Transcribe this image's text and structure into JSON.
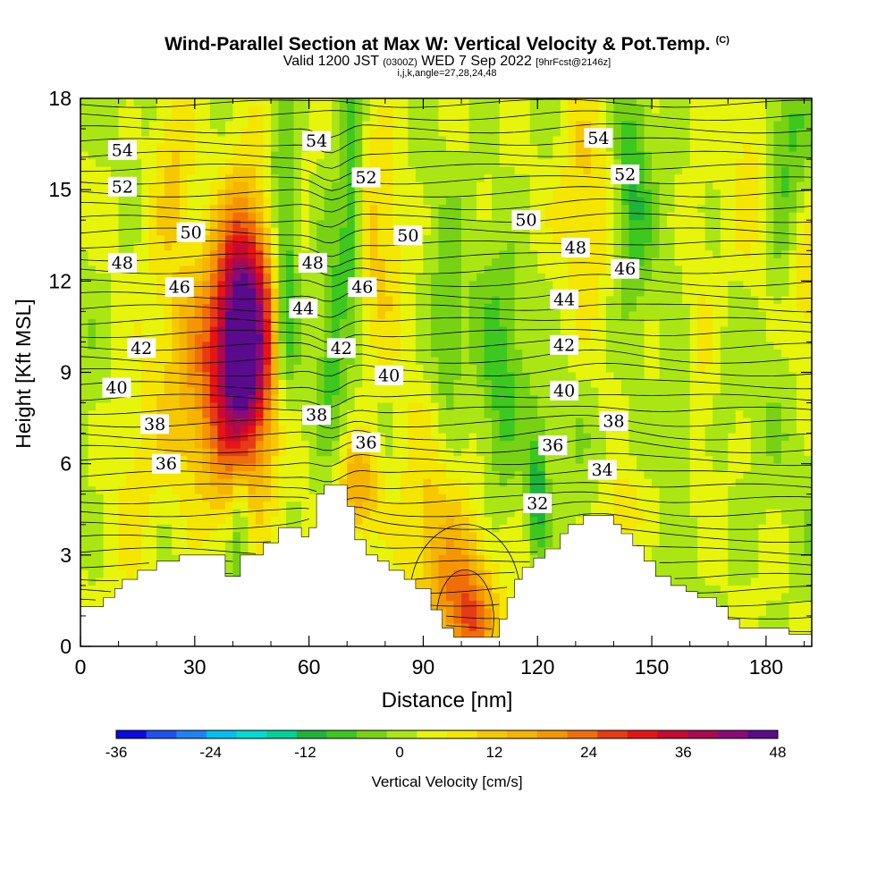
{
  "title": {
    "main": "Wind-Parallel Section at Max W: Vertical Velocity & Pot.Temp.",
    "copyright": "(C)",
    "valid_prefix": "Valid 1200 JST",
    "valid_utc": "(0300Z)",
    "valid_date": "WED 7 Sep 2022",
    "forecast": "[9hrFcst@2146z]",
    "indices": "i,j,k,angle=27,28,24,48"
  },
  "chart_data": {
    "type": "heatmap",
    "xlabel": "Distance [nm]",
    "ylabel": "Height [Kft MSL]",
    "xlim": [
      0,
      192
    ],
    "ylim": [
      0,
      18
    ],
    "xticks": [
      0,
      30,
      60,
      90,
      120,
      150,
      180
    ],
    "yticks": [
      0,
      3,
      6,
      9,
      12,
      15,
      18
    ],
    "colorbar": {
      "label": "Vertical Velocity [cm/s]",
      "min": -36,
      "max": 48,
      "step": 4,
      "ticks": [
        -36,
        -24,
        -12,
        0,
        12,
        24,
        36,
        48
      ],
      "colors": [
        "#0a0ae6",
        "#1e50f0",
        "#1e82f5",
        "#00c0f0",
        "#00dcd2",
        "#00d296",
        "#1eb43c",
        "#3cc81e",
        "#78d214",
        "#aae614",
        "#e6f50a",
        "#f5e600",
        "#f5c800",
        "#f5b400",
        "#f59600",
        "#f06e0a",
        "#e63c14",
        "#e61414",
        "#c80a32",
        "#aa0a50",
        "#8c0a78",
        "#5a0a8c"
      ]
    },
    "potential_temperature_labels": [
      {
        "value": "54",
        "x": 11,
        "y": 16.3
      },
      {
        "value": "52",
        "x": 11,
        "y": 15.1
      },
      {
        "value": "50",
        "x": 29,
        "y": 13.6
      },
      {
        "value": "48",
        "x": 11,
        "y": 12.6
      },
      {
        "value": "46",
        "x": 26,
        "y": 11.8
      },
      {
        "value": "42",
        "x": 16,
        "y": 9.8
      },
      {
        "value": "40",
        "x": 9.5,
        "y": 8.5
      },
      {
        "value": "38",
        "x": 19.5,
        "y": 7.3
      },
      {
        "value": "36",
        "x": 22.5,
        "y": 6.0
      },
      {
        "value": "54",
        "x": 62,
        "y": 16.6
      },
      {
        "value": "52",
        "x": 75,
        "y": 15.4
      },
      {
        "value": "50",
        "x": 86,
        "y": 13.5
      },
      {
        "value": "48",
        "x": 61,
        "y": 12.6
      },
      {
        "value": "46",
        "x": 74,
        "y": 11.8
      },
      {
        "value": "44",
        "x": 58.5,
        "y": 11.1
      },
      {
        "value": "42",
        "x": 68.5,
        "y": 9.8
      },
      {
        "value": "40",
        "x": 81,
        "y": 8.9
      },
      {
        "value": "38",
        "x": 62,
        "y": 7.6
      },
      {
        "value": "36",
        "x": 75,
        "y": 6.7
      },
      {
        "value": "54",
        "x": 136,
        "y": 16.7
      },
      {
        "value": "52",
        "x": 143,
        "y": 15.5
      },
      {
        "value": "50",
        "x": 117,
        "y": 14.0
      },
      {
        "value": "48",
        "x": 130,
        "y": 13.1
      },
      {
        "value": "46",
        "x": 143,
        "y": 12.4
      },
      {
        "value": "44",
        "x": 127,
        "y": 11.4
      },
      {
        "value": "42",
        "x": 127,
        "y": 9.9
      },
      {
        "value": "40",
        "x": 127,
        "y": 8.4
      },
      {
        "value": "38",
        "x": 140,
        "y": 7.4
      },
      {
        "value": "36",
        "x": 124,
        "y": 6.6
      },
      {
        "value": "34",
        "x": 137,
        "y": 5.8
      },
      {
        "value": "32",
        "x": 120,
        "y": 4.7
      }
    ]
  }
}
